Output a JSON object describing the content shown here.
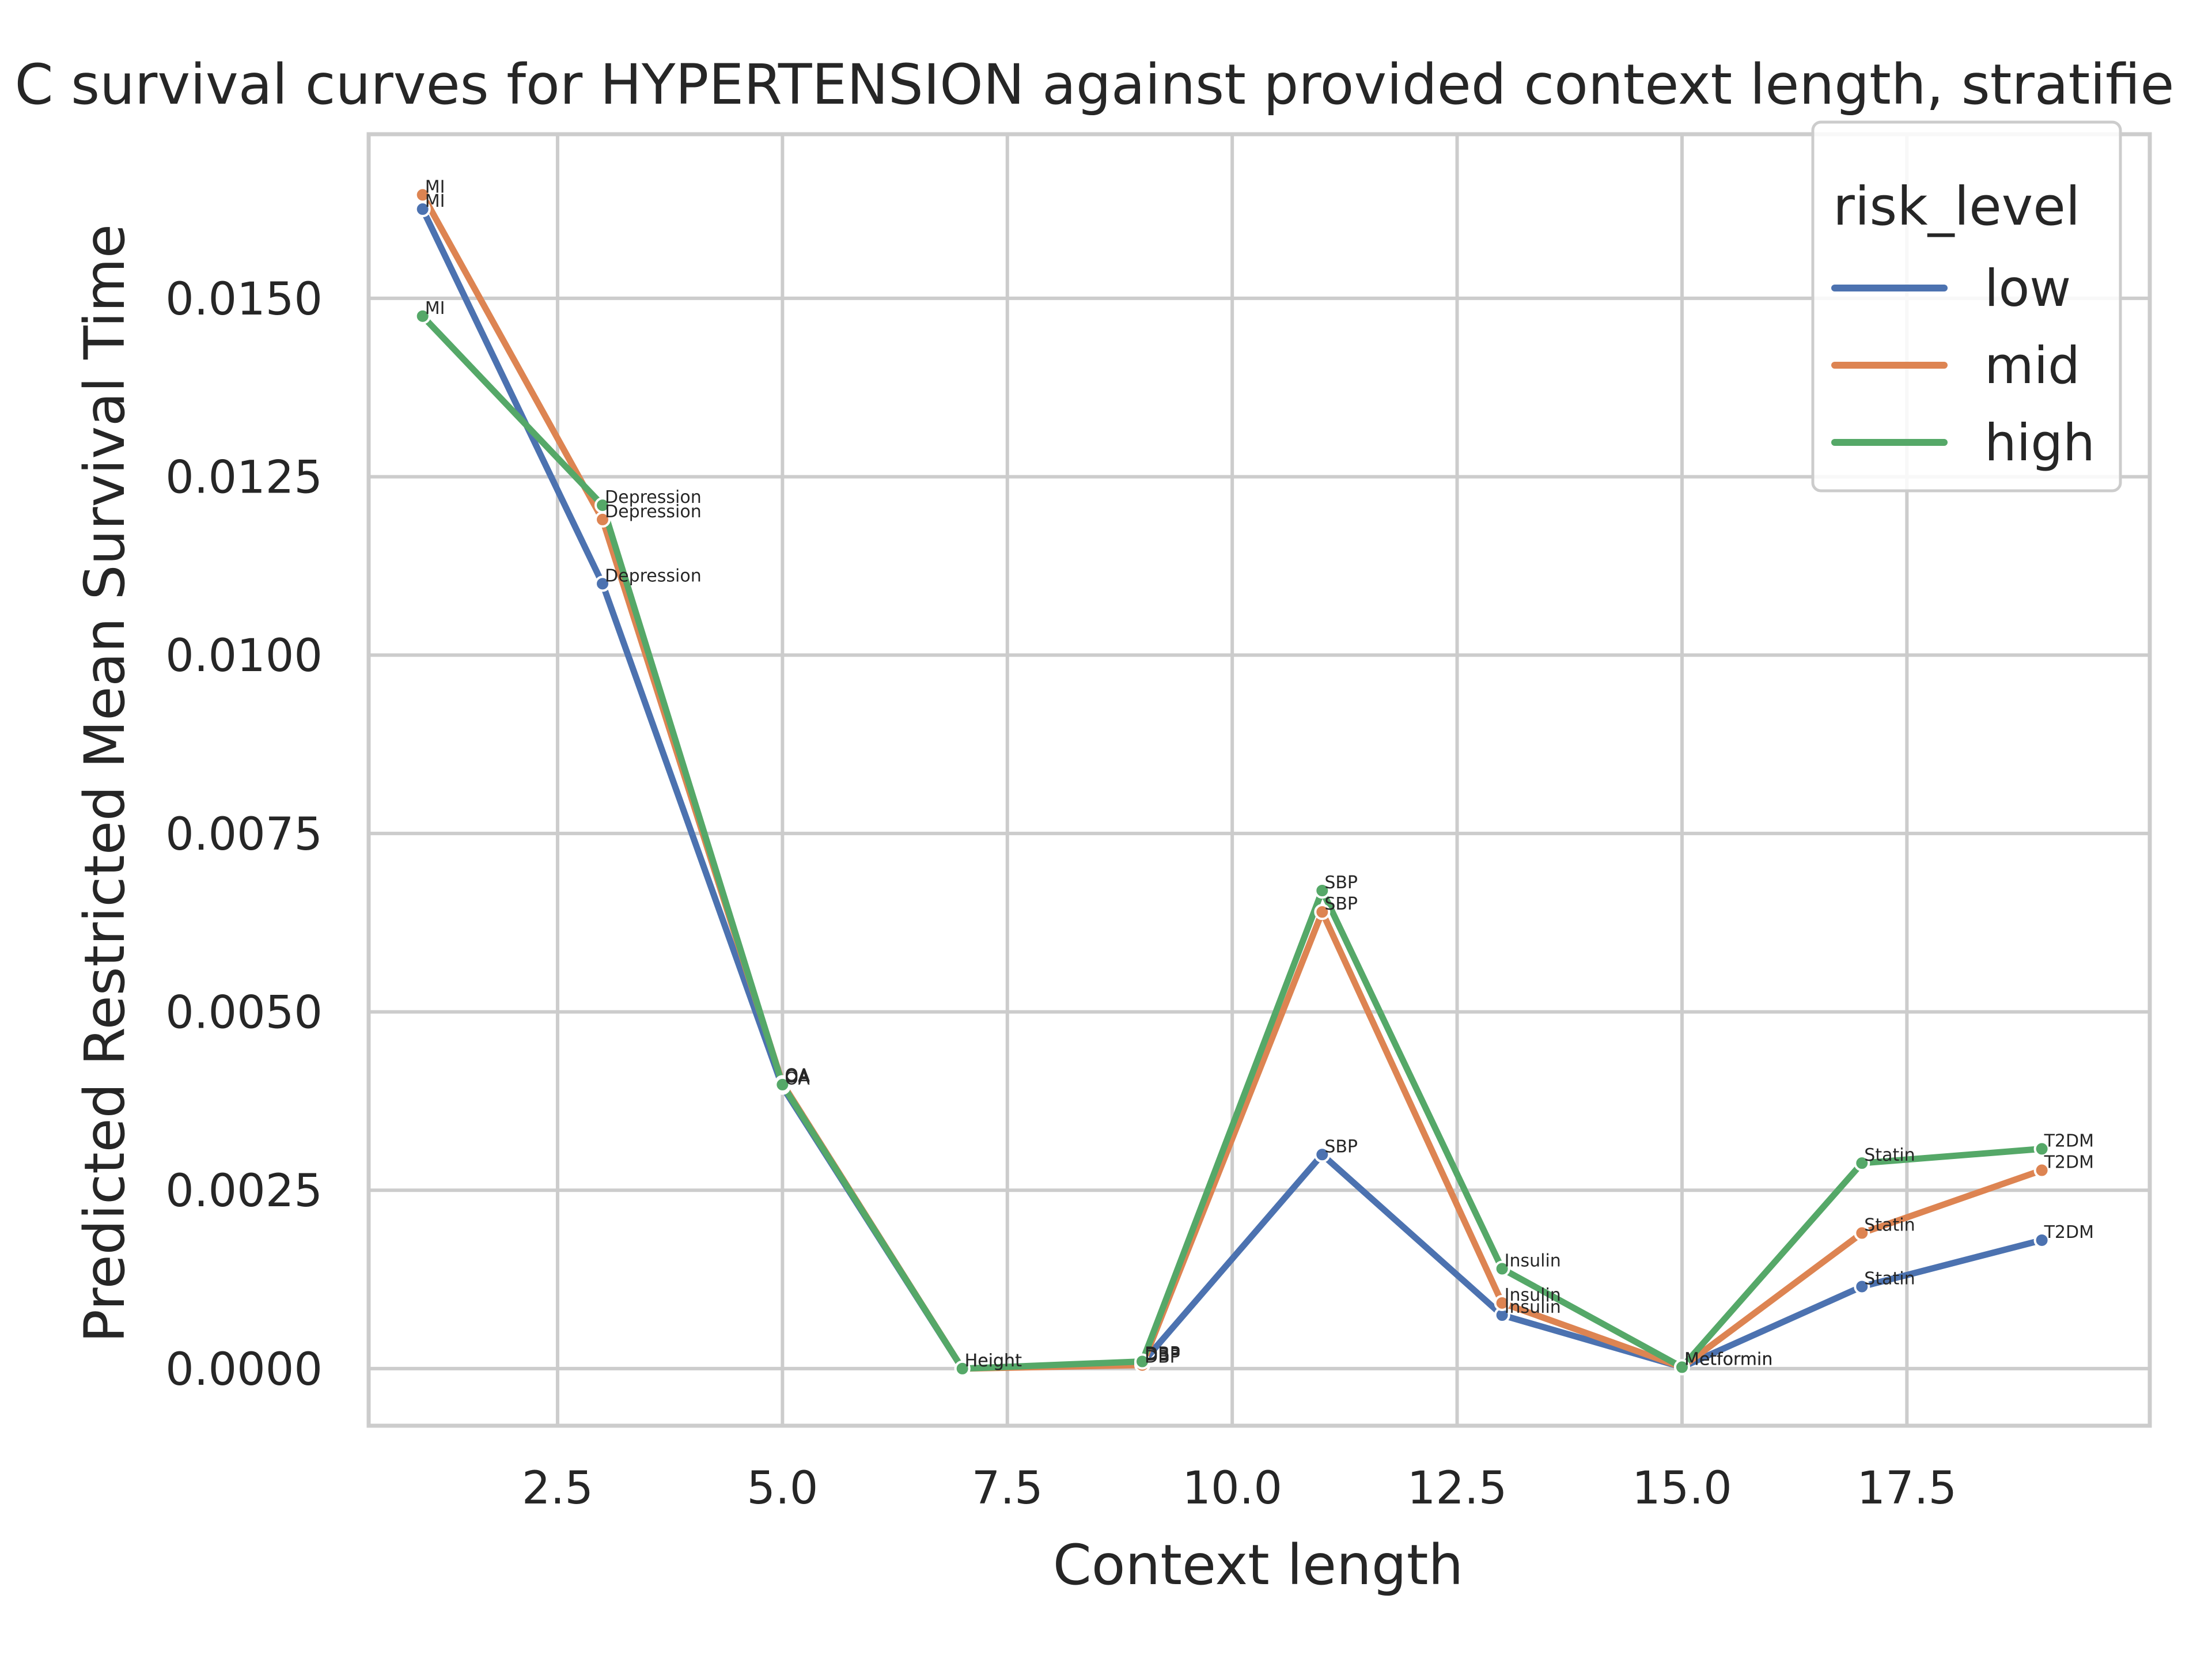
{
  "chart_data": {
    "type": "line",
    "title": "C survival curves for HYPERTENSION against provided context length, stratifie",
    "xlabel": "Context length",
    "ylabel": "Predicted Restricted Mean Survival Time",
    "xlim": [
      0.4,
      20.2
    ],
    "ylim": [
      -0.0008,
      0.0173
    ],
    "x_ticks": [
      2.5,
      5.0,
      7.5,
      10.0,
      12.5,
      15.0,
      17.5
    ],
    "x_tick_labels": [
      "2.5",
      "5.0",
      "7.5",
      "10.0",
      "12.5",
      "15.0",
      "17.5"
    ],
    "y_ticks": [
      0.0,
      0.0025,
      0.005,
      0.0075,
      0.01,
      0.0125,
      0.015
    ],
    "y_tick_labels": [
      "0.0000",
      "0.0025",
      "0.0050",
      "0.0075",
      "0.0100",
      "0.0125",
      "0.0150"
    ],
    "grid": true,
    "legend": {
      "title": "risk_level",
      "position": "top-right"
    },
    "x": [
      1,
      3,
      5,
      7,
      9,
      11,
      13,
      15,
      17,
      19
    ],
    "point_labels": [
      "MI",
      "Depression",
      "OA",
      "Height",
      "DBP",
      "SBP",
      "Insulin",
      "Metformin",
      "Statin",
      "T2DM"
    ],
    "series": [
      {
        "name": "low",
        "color": "#4c72b0",
        "values": [
          0.01625,
          0.011,
          0.00395,
          0.0,
          8e-05,
          0.003,
          0.00075,
          2e-05,
          0.00115,
          0.0018
        ],
        "labels": [
          "MI",
          "Depression",
          "OA",
          "Height",
          "DBP",
          "SBP",
          "Insulin",
          "Metformin",
          "Statin",
          "T2DM"
        ]
      },
      {
        "name": "mid",
        "color": "#dd8452",
        "values": [
          0.01645,
          0.0119,
          0.004,
          0.0,
          5e-05,
          0.0064,
          0.00092,
          2e-05,
          0.0019,
          0.00278
        ],
        "labels": [
          "MI",
          "Depression",
          "OA",
          "Height",
          "DBP",
          "SBP",
          "Insulin",
          "Metformin",
          "Statin",
          "T2DM"
        ]
      },
      {
        "name": "high",
        "color": "#55a868",
        "values": [
          0.01475,
          0.0121,
          0.00398,
          0.0,
          0.0001,
          0.0067,
          0.0014,
          2e-05,
          0.00288,
          0.00308
        ],
        "labels": [
          "MI",
          "Depression",
          "OA",
          "Height",
          "DBP",
          "SBP",
          "Insulin",
          "Metformin",
          "Statin",
          "T2DM"
        ]
      }
    ]
  }
}
